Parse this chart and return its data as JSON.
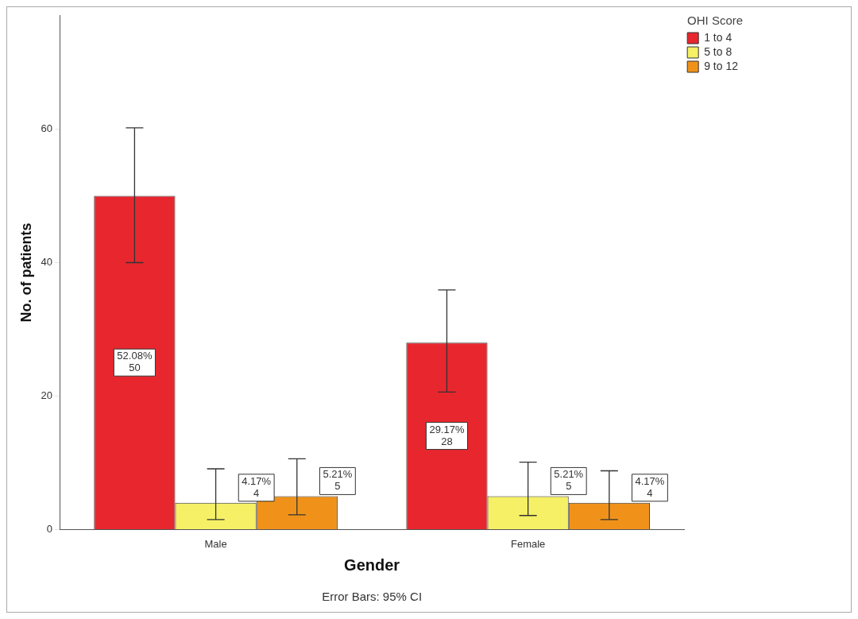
{
  "chart_data": {
    "type": "bar",
    "xlabel": "Gender",
    "ylabel": "No. of patients",
    "legend_title": "OHI Score",
    "legend": "top right",
    "categories": [
      "Male",
      "Female"
    ],
    "series": [
      {
        "name": "1 to 4",
        "color": "#e8262e",
        "values": [
          50,
          28
        ],
        "errors": [
          [
            40,
            60.2
          ],
          [
            20.6,
            35.9
          ]
        ],
        "value_labels": [
          "52.08%\n50",
          "29.17%\n28"
        ]
      },
      {
        "name": "5 to 8",
        "color": "#f5f065",
        "values": [
          4,
          5
        ],
        "errors": [
          [
            1.5,
            9.1
          ],
          [
            2.1,
            10.1
          ]
        ],
        "value_labels": [
          "4.17%\n4",
          "5.21%\n5"
        ]
      },
      {
        "name": "9 to 12",
        "color": "#f0921a",
        "values": [
          5,
          4
        ],
        "errors": [
          [
            2.2,
            10.6
          ],
          [
            1.5,
            8.8
          ]
        ],
        "value_labels": [
          "5.21%\n5",
          "4.17%\n4"
        ]
      }
    ],
    "ylim": [
      0,
      77
    ],
    "yticks": [
      0,
      20,
      40,
      60
    ],
    "grid": false,
    "annotations": [
      "Error Bars: 95% CI"
    ]
  }
}
